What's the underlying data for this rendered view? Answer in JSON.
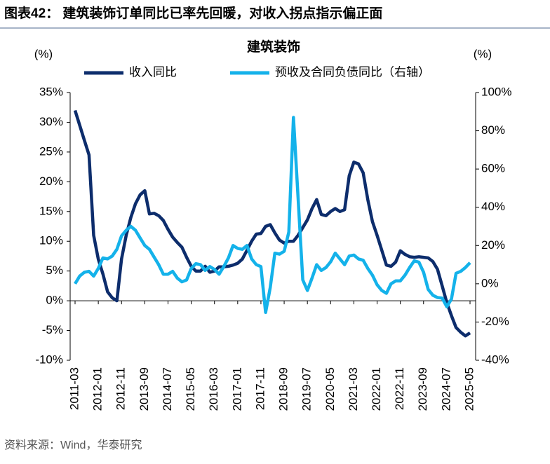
{
  "header": {
    "title": "图表42： 建筑装饰订单同比已率先回暖，对收入拐点指示偏正面"
  },
  "chart_data": {
    "type": "line",
    "title": "建筑装饰",
    "ylabel": "(%)",
    "y2label": "(%)",
    "categories": [
      "2011-03",
      null,
      null,
      null,
      null,
      "2012-01",
      null,
      null,
      null,
      null,
      "2012-11",
      null,
      null,
      null,
      null,
      "2013-09",
      null,
      null,
      null,
      null,
      "2014-07",
      null,
      null,
      null,
      null,
      "2015-05",
      null,
      null,
      null,
      null,
      "2016-03",
      null,
      null,
      null,
      null,
      "2017-01",
      null,
      null,
      null,
      null,
      "2017-11",
      null,
      null,
      null,
      null,
      "2018-09",
      null,
      null,
      null,
      null,
      "2019-07",
      null,
      null,
      null,
      null,
      "2020-05",
      null,
      null,
      null,
      null,
      "2021-03",
      null,
      null,
      null,
      null,
      "2022-01",
      null,
      null,
      null,
      null,
      "2022-11",
      null,
      null,
      null,
      null,
      "2023-09",
      null,
      null,
      null,
      null,
      "2024-07",
      null,
      null,
      null,
      null,
      "2025-05"
    ],
    "series": [
      {
        "name": "收入同比",
        "color": "#0d2d6c",
        "values": [
          32,
          29.5,
          27,
          24.5,
          11,
          7,
          4.5,
          1.5,
          0.5,
          0,
          7,
          11,
          14,
          16.3,
          17.8,
          18.5,
          14.6,
          14.7,
          14.3,
          13.5,
          12,
          10.7,
          9.8,
          9,
          7.3,
          5.8,
          5,
          5,
          5.8,
          4.8,
          5,
          5.7,
          5.7,
          5.8,
          6,
          6.3,
          7,
          8.5,
          10,
          11.2,
          11.3,
          12.5,
          12.8,
          11.4,
          10.2,
          9.7,
          10,
          10,
          11,
          12.3,
          13.6,
          15.5,
          17,
          14.5,
          14.3,
          15,
          15.5,
          15,
          15.3,
          21,
          23.3,
          23,
          21.5,
          17,
          13.3,
          11,
          8.5,
          6,
          5.8,
          6.5,
          8.4,
          7.8,
          7.4,
          7.3,
          7.4,
          7.3,
          7.2,
          6.6,
          5.3,
          2.5,
          -0.3,
          -2.5,
          -4.5,
          -5.3,
          -5.9,
          -5.4
        ]
      },
      {
        "name": "预收及合同负债同比（右轴）",
        "color": "#14b2ea",
        "axis": "y2",
        "values": [
          0,
          4,
          6,
          6.5,
          4,
          8,
          13.5,
          13,
          14.5,
          18,
          25,
          28,
          30,
          28,
          24,
          20,
          18,
          14,
          10,
          5,
          5,
          6.5,
          3,
          1,
          2,
          8,
          10.5,
          10,
          7,
          9,
          7.5,
          5,
          9,
          13.5,
          20,
          18.5,
          18,
          20,
          13,
          10,
          9,
          -15,
          -2,
          16,
          15.5,
          17,
          27,
          87,
          45,
          2,
          -3.5,
          3,
          10,
          7,
          8.5,
          11.5,
          16,
          13,
          10,
          14.5,
          15,
          13,
          12.3,
          8,
          4.5,
          -0.5,
          -3.5,
          -5,
          0,
          1.5,
          1.5,
          4.5,
          8.5,
          12,
          11.3,
          6,
          -3,
          -6,
          -7.2,
          -7.5,
          -12,
          -8,
          5.5,
          6.5,
          8.5,
          11
        ]
      }
    ],
    "ylim": [
      -10,
      35
    ],
    "yticks": [
      {
        "value": -10,
        "label": "-10%"
      },
      {
        "value": -5,
        "label": "-5%"
      },
      {
        "value": 0,
        "label": "0%"
      },
      {
        "value": 5,
        "label": "5%"
      },
      {
        "value": 10,
        "label": "10%"
      },
      {
        "value": 15,
        "label": "15%"
      },
      {
        "value": 20,
        "label": "20%"
      },
      {
        "value": 25,
        "label": "25%"
      },
      {
        "value": 30,
        "label": "30%"
      },
      {
        "value": 35,
        "label": "35%"
      }
    ],
    "y2lim": [
      -40,
      100
    ],
    "y2ticks": [
      {
        "value": -40,
        "label": "-40%"
      },
      {
        "value": -20,
        "label": "-20%"
      },
      {
        "value": 0,
        "label": "0%"
      },
      {
        "value": 20,
        "label": "20%"
      },
      {
        "value": 40,
        "label": "40%"
      },
      {
        "value": 60,
        "label": "60%"
      },
      {
        "value": 80,
        "label": "80%"
      },
      {
        "value": 100,
        "label": "100%"
      }
    ],
    "grid": false
  },
  "source": "资料来源：Wind，华泰研究"
}
